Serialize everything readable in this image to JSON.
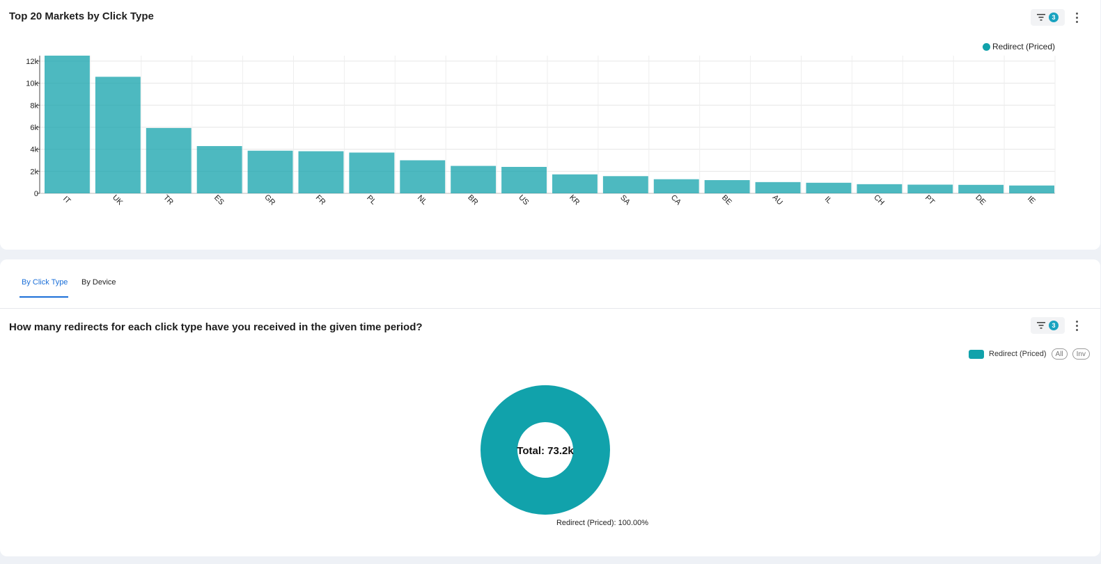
{
  "top_card": {
    "title": "Top 20 Markets by Click Type",
    "filter_count": "3",
    "legend_label": "Redirect (Priced)"
  },
  "tabs": [
    {
      "label": "By Click Type",
      "active": true
    },
    {
      "label": "By Device",
      "active": false
    }
  ],
  "bottom_card": {
    "title": "How many redirects for each click type have you received in the given time period?",
    "filter_count": "3",
    "legend_label": "Redirect (Priced)",
    "pill_all": "All",
    "pill_inv": "Inv"
  },
  "colors": {
    "bar": "#11a2ab",
    "accent": "#1b6fd8",
    "badge": "#1aa3c0"
  },
  "chart_data": [
    {
      "type": "bar",
      "title": "Top 20 Markets by Click Type",
      "categories": [
        "IT",
        "UK",
        "TR",
        "ES",
        "GR",
        "FR",
        "PL",
        "NL",
        "BR",
        "US",
        "KR",
        "SA",
        "CA",
        "BE",
        "AU",
        "IL",
        "CH",
        "PT",
        "DE",
        "IE"
      ],
      "series": [
        {
          "name": "Redirect (Priced)",
          "values": [
            12500,
            10580,
            5930,
            4290,
            3870,
            3820,
            3700,
            3000,
            2490,
            2400,
            1720,
            1560,
            1280,
            1200,
            1020,
            960,
            830,
            790,
            770,
            710
          ]
        }
      ],
      "yticks": [
        0,
        2000,
        4000,
        6000,
        8000,
        10000,
        12000
      ],
      "ytick_labels": [
        "0",
        "2k",
        "4k",
        "6k",
        "8k",
        "10k",
        "12k"
      ],
      "ylim": [
        0,
        12500
      ],
      "grid": true,
      "legend": "top-right"
    },
    {
      "type": "pie",
      "donut": true,
      "center_label": "Total: 73.2k",
      "slices": [
        {
          "name": "Redirect (Priced)",
          "value": 100,
          "label": "Redirect (Priced): 100.00%"
        }
      ],
      "legend": "top-right"
    }
  ]
}
